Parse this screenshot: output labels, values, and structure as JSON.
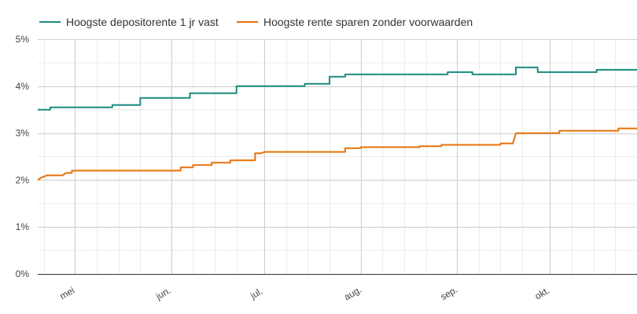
{
  "chart_data": {
    "type": "line",
    "xlim": [
      "2024-04-19",
      "2024-10-29"
    ],
    "ylim": [
      0,
      5
    ],
    "yticks": [
      0,
      1,
      2,
      3,
      4,
      5
    ],
    "ytick_labels": [
      "0%",
      "1%",
      "2%",
      "3%",
      "4%",
      "5%"
    ],
    "xticks": [
      {
        "date": "2024-05-01",
        "label": "mei"
      },
      {
        "date": "2024-06-01",
        "label": "jun."
      },
      {
        "date": "2024-07-01",
        "label": "jul."
      },
      {
        "date": "2024-08-01",
        "label": "aug."
      },
      {
        "date": "2024-09-01",
        "label": "sep."
      },
      {
        "date": "2024-10-01",
        "label": "okt."
      }
    ],
    "minor_grid_dates": [
      "2024-04-21",
      "2024-05-08",
      "2024-05-15",
      "2024-05-22",
      "2024-06-08",
      "2024-06-15",
      "2024-06-22",
      "2024-07-08",
      "2024-07-15",
      "2024-07-22",
      "2024-08-08",
      "2024-08-15",
      "2024-08-22",
      "2024-09-08",
      "2024-09-15",
      "2024-09-22",
      "2024-10-08",
      "2024-10-15",
      "2024-10-22"
    ],
    "grid": true,
    "legend_position": "top-left",
    "series": [
      {
        "name": "Hoogste depositorente 1 jr vast",
        "color": "#1b8a80",
        "points": [
          [
            "2024-04-19",
            3.5
          ],
          [
            "2024-04-23",
            3.5
          ],
          [
            "2024-04-23",
            3.55
          ],
          [
            "2024-05-13",
            3.55
          ],
          [
            "2024-05-13",
            3.6
          ],
          [
            "2024-05-22",
            3.6
          ],
          [
            "2024-05-22",
            3.75
          ],
          [
            "2024-06-07",
            3.75
          ],
          [
            "2024-06-07",
            3.85
          ],
          [
            "2024-06-22",
            3.85
          ],
          [
            "2024-06-22",
            4.0
          ],
          [
            "2024-07-14",
            4.0
          ],
          [
            "2024-07-14",
            4.05
          ],
          [
            "2024-07-22",
            4.05
          ],
          [
            "2024-07-22",
            4.2
          ],
          [
            "2024-07-27",
            4.2
          ],
          [
            "2024-07-27",
            4.25
          ],
          [
            "2024-08-29",
            4.25
          ],
          [
            "2024-08-29",
            4.3
          ],
          [
            "2024-09-06",
            4.3
          ],
          [
            "2024-09-06",
            4.25
          ],
          [
            "2024-09-20",
            4.25
          ],
          [
            "2024-09-20",
            4.4
          ],
          [
            "2024-09-27",
            4.4
          ],
          [
            "2024-09-27",
            4.3
          ],
          [
            "2024-10-16",
            4.3
          ],
          [
            "2024-10-16",
            4.35
          ],
          [
            "2024-10-29",
            4.35
          ]
        ]
      },
      {
        "name": "Hoogste rente sparen zonder voorwaarden",
        "color": "#e8710a",
        "points": [
          [
            "2024-04-19",
            2.0
          ],
          [
            "2024-04-20",
            2.05
          ],
          [
            "2024-04-22",
            2.1
          ],
          [
            "2024-04-27",
            2.1
          ],
          [
            "2024-04-28",
            2.15
          ],
          [
            "2024-04-30",
            2.15
          ],
          [
            "2024-04-30",
            2.2
          ],
          [
            "2024-06-04",
            2.2
          ],
          [
            "2024-06-04",
            2.27
          ],
          [
            "2024-06-08",
            2.27
          ],
          [
            "2024-06-08",
            2.32
          ],
          [
            "2024-06-14",
            2.32
          ],
          [
            "2024-06-14",
            2.37
          ],
          [
            "2024-06-20",
            2.37
          ],
          [
            "2024-06-20",
            2.42
          ],
          [
            "2024-06-28",
            2.42
          ],
          [
            "2024-06-28",
            2.57
          ],
          [
            "2024-06-30",
            2.57
          ],
          [
            "2024-07-01",
            2.6
          ],
          [
            "2024-07-27",
            2.6
          ],
          [
            "2024-07-27",
            2.68
          ],
          [
            "2024-08-01",
            2.68
          ],
          [
            "2024-08-01",
            2.7
          ],
          [
            "2024-08-20",
            2.7
          ],
          [
            "2024-08-20",
            2.72
          ],
          [
            "2024-08-27",
            2.72
          ],
          [
            "2024-08-27",
            2.75
          ],
          [
            "2024-09-15",
            2.75
          ],
          [
            "2024-09-15",
            2.78
          ],
          [
            "2024-09-19",
            2.78
          ],
          [
            "2024-09-20",
            3.0
          ],
          [
            "2024-10-04",
            3.0
          ],
          [
            "2024-10-04",
            3.05
          ],
          [
            "2024-10-23",
            3.05
          ],
          [
            "2024-10-23",
            3.1
          ],
          [
            "2024-10-29",
            3.1
          ]
        ]
      }
    ]
  }
}
